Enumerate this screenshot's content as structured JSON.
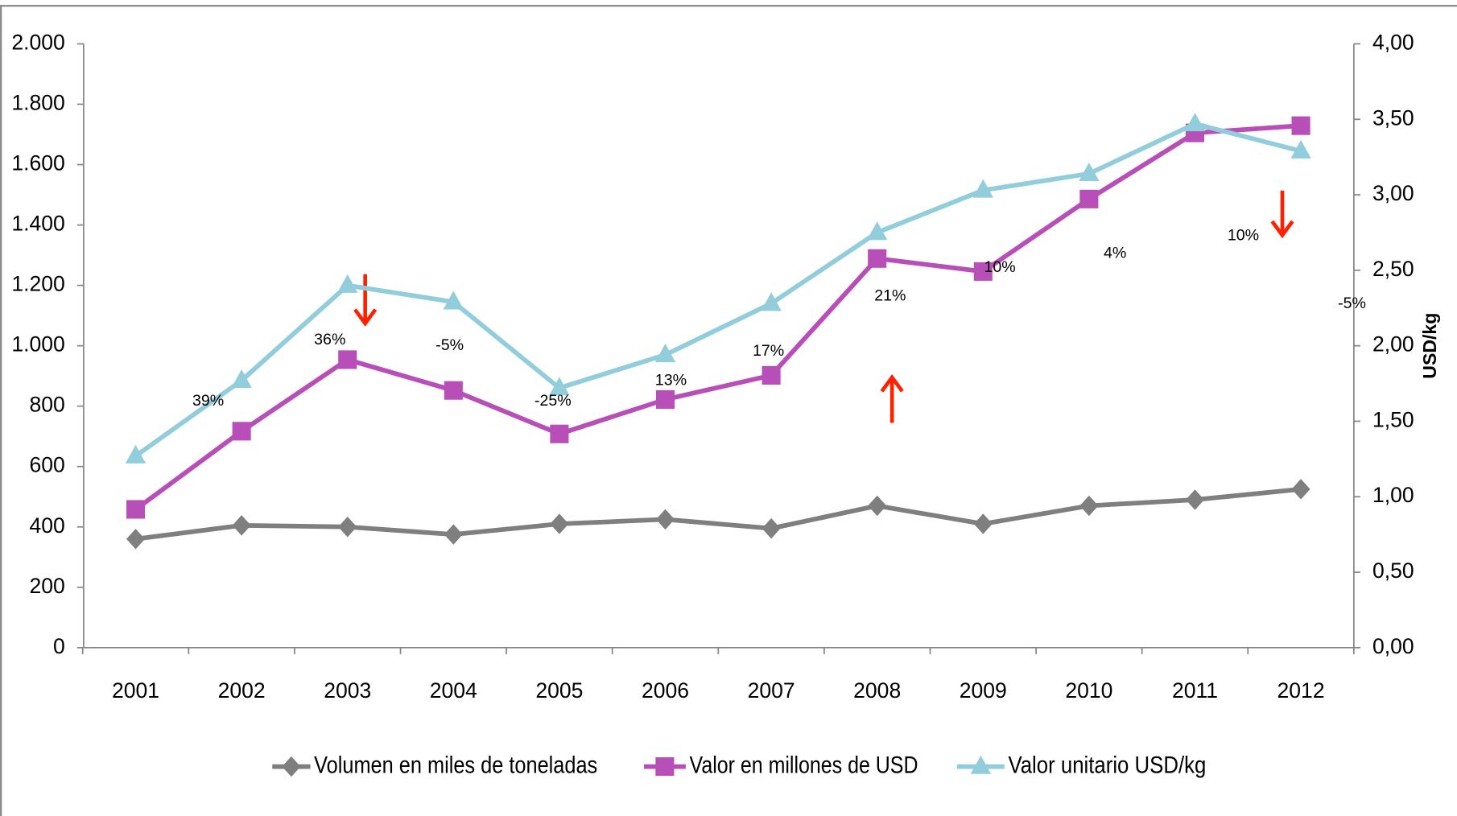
{
  "chart_data": {
    "type": "line",
    "categories": [
      "2001",
      "2002",
      "2003",
      "2004",
      "2005",
      "2006",
      "2007",
      "2008",
      "2009",
      "2010",
      "2011",
      "2012"
    ],
    "series": [
      {
        "name": "Volumen en miles de toneladas",
        "color": "#7f7f7f",
        "marker": "diamond",
        "values": [
          360,
          405,
          400,
          375,
          410,
          425,
          395,
          470,
          410,
          470,
          490,
          525
        ]
      },
      {
        "name": "Valor en millones de USD",
        "color": "#b84fb8",
        "marker": "square",
        "values": [
          458,
          717,
          954,
          852,
          708,
          822,
          902,
          1289,
          1246,
          1486,
          1705,
          1729
        ]
      },
      {
        "name": "Valor unitario USD/kg",
        "color": "#92cddc",
        "marker": "triangle",
        "axis": "y2",
        "values": [
          1.27,
          1.77,
          2.4,
          2.29,
          1.72,
          1.94,
          2.28,
          2.75,
          3.03,
          3.14,
          3.47,
          3.29
        ]
      }
    ],
    "ylim": [
      0,
      2000
    ],
    "yticks": [
      0,
      200,
      400,
      600,
      800,
      {
        "value": 1000,
        "label": "1.000"
      },
      {
        "value": 1200,
        "label": "1.200"
      },
      {
        "value": 1400,
        "label": "1.400"
      },
      {
        "value": 1600,
        "label": "1.600"
      },
      {
        "value": 1800,
        "label": "1.800"
      },
      {
        "value": 2000,
        "label": "2.000"
      }
    ],
    "y2lim": [
      0,
      4
    ],
    "y2ticks": [
      {
        "value": 0,
        "label": "0,00"
      },
      {
        "value": 0.5,
        "label": "0,50"
      },
      {
        "value": 1,
        "label": "1,00"
      },
      {
        "value": 1.5,
        "label": "1,50"
      },
      {
        "value": 2,
        "label": "2,00"
      },
      {
        "value": 2.5,
        "label": "2,50"
      },
      {
        "value": 3,
        "label": "3,00"
      },
      {
        "value": 3.5,
        "label": "3,50"
      },
      {
        "value": 4,
        "label": "4,00"
      }
    ],
    "y2label": "USD/kg",
    "annotations": [
      "39%",
      "36%",
      "-5%",
      "-25%",
      "13%",
      "17%",
      "21%",
      "10%",
      "4%",
      "10%",
      "-5%"
    ],
    "legend": "bottom"
  }
}
